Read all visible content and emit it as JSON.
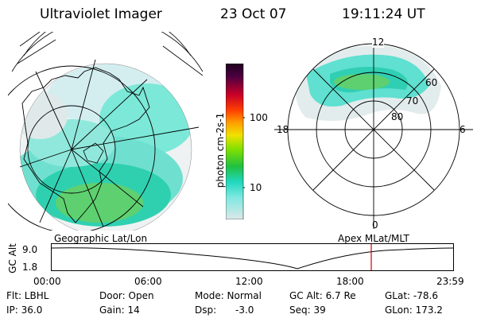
{
  "header": {
    "title": "Ultraviolet Imager",
    "date": "23 Oct 07",
    "time": "19:11:24 UT"
  },
  "colorbar": {
    "label": "photon cm-2s-1",
    "ticks": [
      "100",
      "10"
    ]
  },
  "geo_panel": {
    "caption": "Geographic Lat/Lon"
  },
  "mag_panel": {
    "caption": "Apex MLat/MLT",
    "mlt_labels": {
      "top": "12",
      "left": "18",
      "right": "6",
      "bottom": "0"
    },
    "mlat_labels": [
      "60",
      "70",
      "80"
    ]
  },
  "alt_plot": {
    "ylabel": "GC Alt",
    "yticks": [
      "9.0",
      "1.8"
    ],
    "xticks": [
      "00:00",
      "06:00",
      "12:00",
      "18:00",
      "23:59"
    ],
    "marker_color": "#d00000"
  },
  "info": {
    "row1": {
      "filter": "Flt: LBHL",
      "door": "Door: Open",
      "mode": "Mode: Normal",
      "gcalt": "GC Alt: 6.7 Re",
      "glat": "GLat: -78.6"
    },
    "row2": {
      "ip": "IP: 36.0",
      "gain": "Gain: 14",
      "dsp_label": "Dsp:",
      "dsp_value": "-3.0",
      "seq": "Seq: 39",
      "glon": "GLon: 173.2"
    }
  },
  "colors": {
    "aurora_low": "#6fe0d0",
    "aurora_mid": "#2fd0b0",
    "aurora_high": "#1fbf40",
    "background_low": "#d8e8e8"
  }
}
